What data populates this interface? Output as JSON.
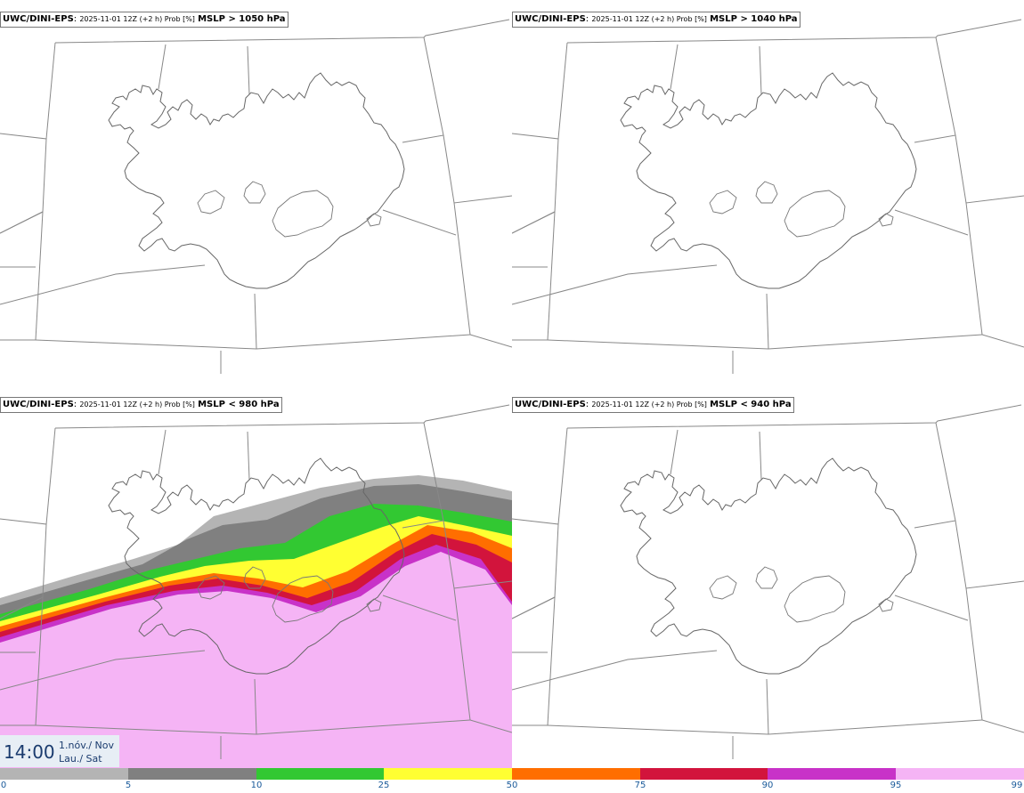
{
  "panels": [
    {
      "id": "p1",
      "model": "UWC/DINI-EPS",
      "run": "2025-11-01 12Z (+2 h) Prob [%]",
      "threshold": "MSLP > 1050 hPa",
      "filled": false
    },
    {
      "id": "p2",
      "model": "UWC/DINI-EPS",
      "run": "2025-11-01 12Z (+2 h) Prob [%]",
      "threshold": "MSLP > 1040 hPa",
      "filled": false
    },
    {
      "id": "p3",
      "model": "UWC/DINI-EPS",
      "run": "2025-11-01 12Z (+2 h) Prob [%]",
      "threshold": "MSLP < 980 hPa",
      "filled": true
    },
    {
      "id": "p4",
      "model": "UWC/DINI-EPS",
      "run": "2025-11-01 12Z (+2 h) Prob [%]",
      "threshold": "MSLP < 940 hPa",
      "filled": false
    }
  ],
  "time": {
    "clock": "14:00",
    "date_line": "1.nóv./ Nov",
    "day_line": "Lau./ Sat"
  },
  "legend": {
    "ticks": [
      "0",
      "5",
      "10",
      "25",
      "50",
      "75",
      "90",
      "95",
      "99"
    ],
    "colors": [
      "#ffffff",
      "#b4b4b4",
      "#808080",
      "#32c832",
      "#ffff32",
      "#ff6e00",
      "#d2143c",
      "#c832c8",
      "#f5b4f5"
    ]
  }
}
